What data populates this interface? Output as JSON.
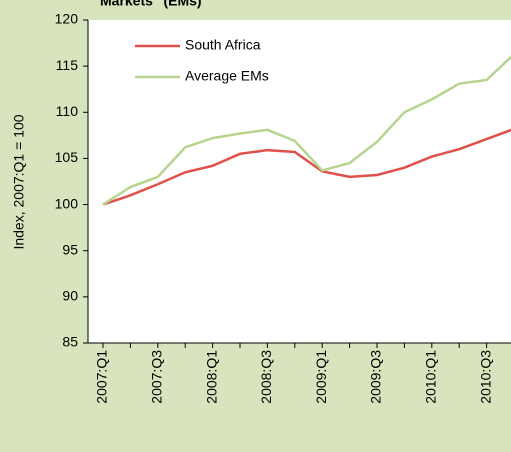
{
  "chart_data": {
    "type": "line",
    "title": "Markets\" (EMs)",
    "y_label": "Index, 2007:Q1 = 100",
    "categories": [
      "2007:Q1",
      null,
      "2007:Q3",
      null,
      "2008:Q1",
      null,
      "2008:Q3",
      null,
      "2009:Q1",
      null,
      "2009:Q3",
      null,
      "2010:Q1",
      null,
      "2010:Q3",
      null
    ],
    "series": [
      {
        "name": "South Africa",
        "color": "#e0504a",
        "values": [
          100,
          101,
          102.2,
          103.5,
          104.2,
          105.5,
          105.9,
          105.7,
          103.6,
          103.0,
          103.2,
          104.0,
          105.2,
          106.0,
          107.1,
          108.2
        ]
      },
      {
        "name": "Average EMs",
        "color": "#b5d48e",
        "values": [
          100,
          101.9,
          103,
          106.2,
          107.2,
          107.7,
          108.1,
          106.9,
          103.7,
          104.5,
          106.8,
          110,
          111.4,
          113.1,
          113.5,
          116.3
        ]
      }
    ],
    "ylim": [
      85,
      120
    ],
    "yticks": [
      85,
      90,
      95,
      100,
      105,
      110,
      115,
      120
    ],
    "legend": "upper left"
  }
}
